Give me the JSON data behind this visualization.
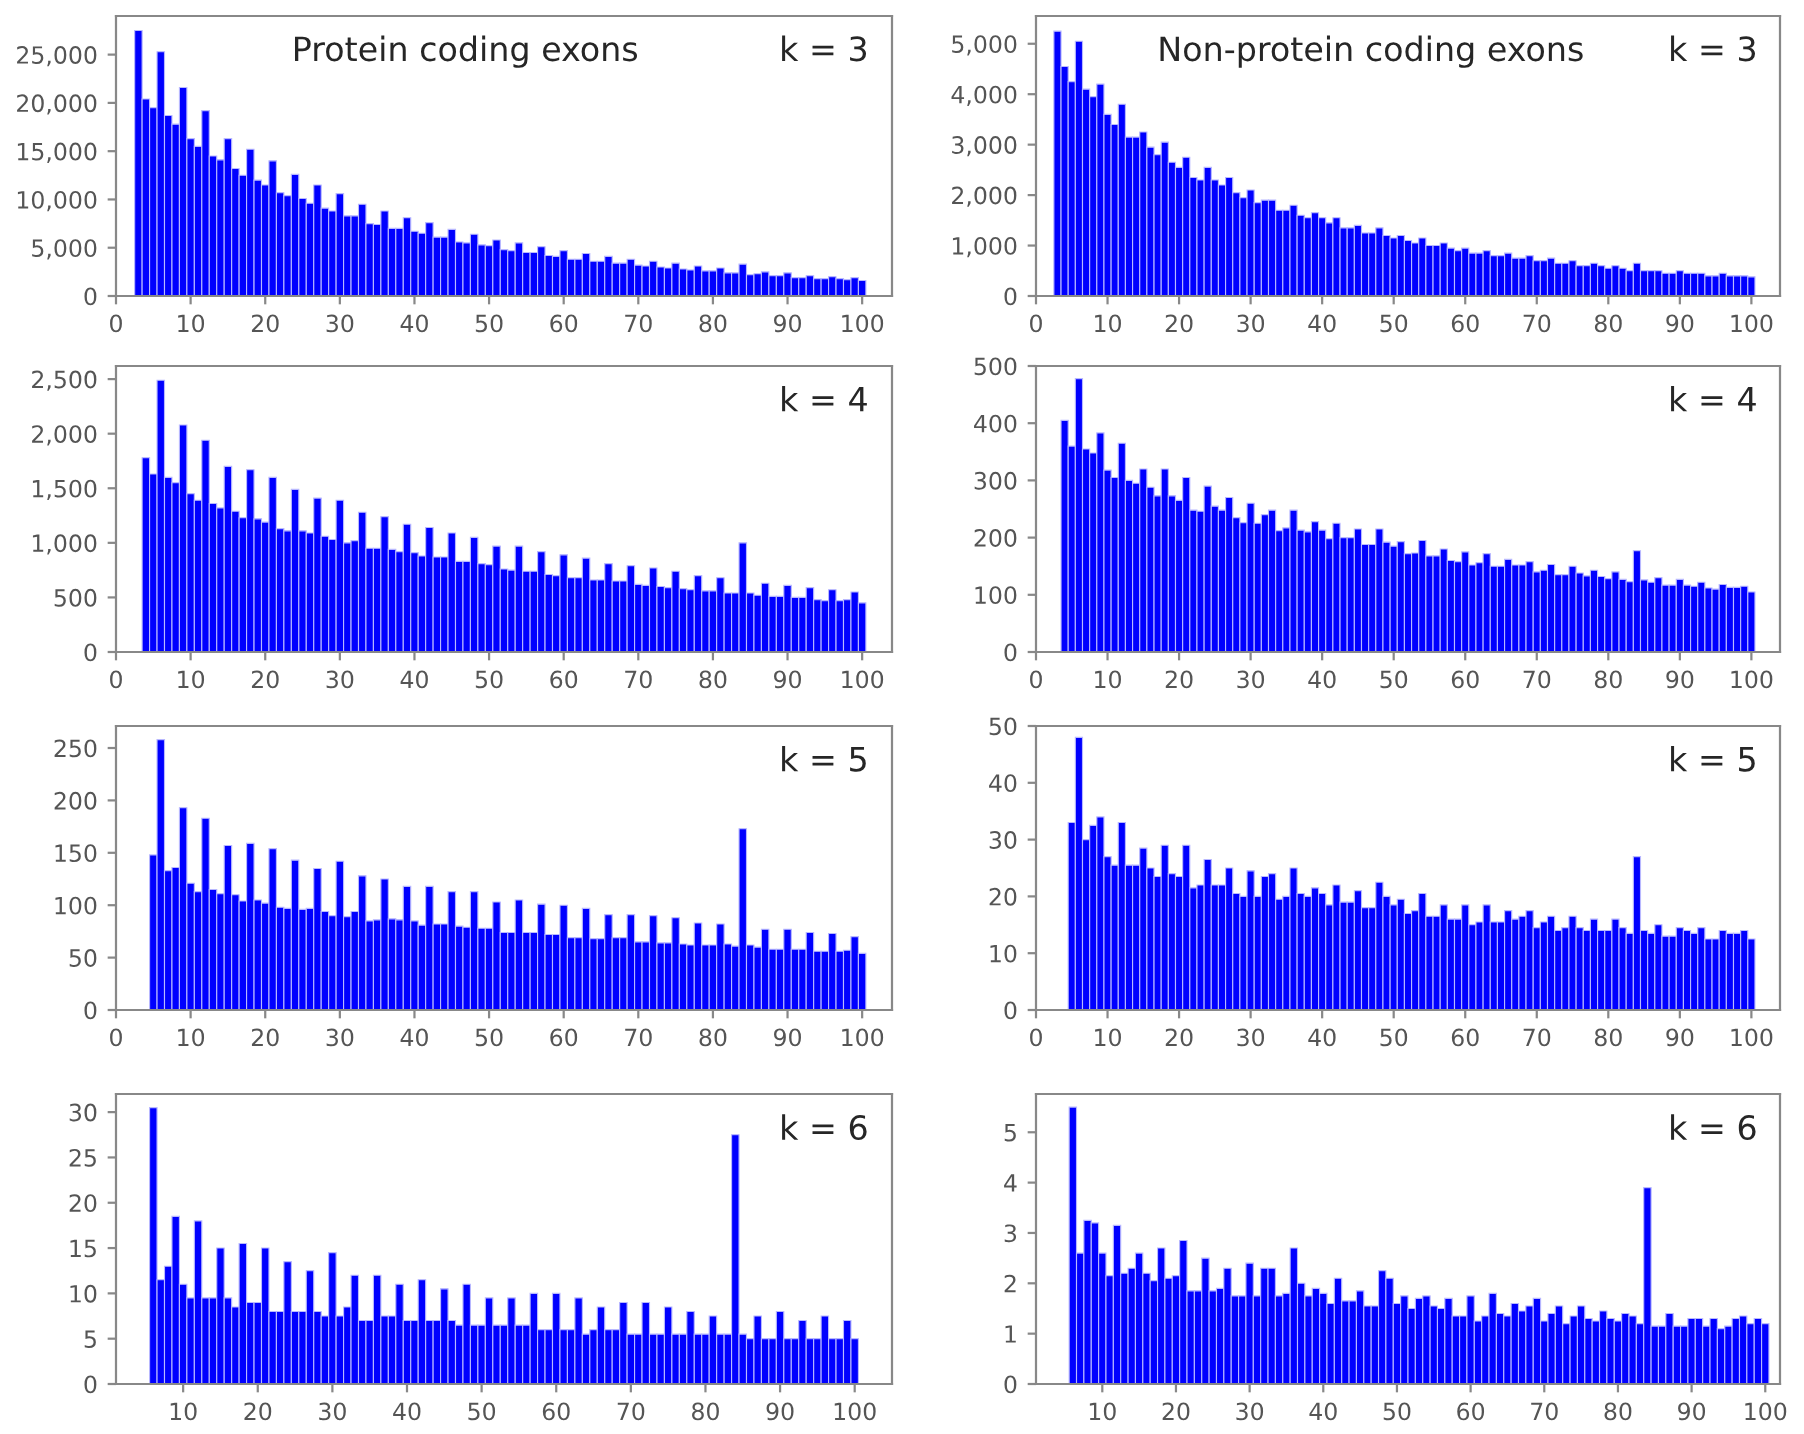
{
  "chart_data": [
    {
      "type": "histogram",
      "title": "Protein coding exons",
      "annotations": [
        "k = 3"
      ],
      "color": "#0000ff",
      "bins": [
        2.5,
        3.5,
        4.5,
        5.5,
        6.5,
        7.5,
        8.5,
        9.5,
        10.5,
        11.5,
        12.5,
        13.5,
        14.5,
        15.5,
        16.5,
        17.5,
        18.5,
        19.5,
        20.5,
        21.5,
        22.5,
        23.5,
        24.5,
        25.5,
        26.5,
        27.5,
        28.5,
        29.5,
        30.5,
        31.5,
        32.5,
        33.5,
        34.5,
        35.5,
        36.5,
        37.5,
        38.5,
        39.5,
        40.5,
        41.5,
        42.5,
        43.5,
        44.5,
        45.5,
        46.5,
        47.5,
        48.5,
        49.5,
        50.5,
        51.5,
        52.5,
        53.5,
        54.5,
        55.5,
        56.5,
        57.5,
        58.5,
        59.5,
        60.5,
        61.5,
        62.5,
        63.5,
        64.5,
        65.5,
        66.5,
        67.5,
        68.5,
        69.5,
        70.5,
        71.5,
        72.5,
        73.5,
        74.5,
        75.5,
        76.5,
        77.5,
        78.5,
        79.5,
        80.5,
        81.5,
        82.5,
        83.5,
        84.5,
        85.5,
        86.5,
        87.5,
        88.5,
        89.5,
        90.5,
        91.5,
        92.5,
        93.5,
        94.5,
        95.5,
        96.5,
        97.5,
        98.5,
        99.5,
        100.5
      ],
      "values": [
        27500,
        20400,
        19500,
        25300,
        18700,
        17800,
        21600,
        16300,
        15500,
        19200,
        14500,
        14100,
        16300,
        13200,
        12500,
        15200,
        12000,
        11500,
        14000,
        10700,
        10400,
        12600,
        10100,
        9600,
        11500,
        9100,
        8800,
        10600,
        8300,
        8300,
        9500,
        7500,
        7400,
        8800,
        7000,
        7000,
        8100,
        6700,
        6500,
        7600,
        6100,
        6100,
        6900,
        5600,
        5500,
        6400,
        5300,
        5200,
        5800,
        4800,
        4700,
        5500,
        4500,
        4500,
        5100,
        4200,
        4100,
        4700,
        3800,
        3800,
        4400,
        3600,
        3600,
        4100,
        3400,
        3400,
        3800,
        3200,
        3100,
        3600,
        3000,
        2900,
        3400,
        2800,
        2700,
        3100,
        2600,
        2600,
        2900,
        2400,
        2400,
        3300,
        2200,
        2300,
        2500,
        2100,
        2100,
        2400,
        1900,
        1900,
        2100,
        1800,
        1800,
        2000,
        1800,
        1700,
        1900,
        1600
      ],
      "xlim": [
        0,
        104
      ],
      "xticks": [
        0,
        10,
        20,
        30,
        40,
        50,
        60,
        70,
        80,
        90,
        100
      ],
      "ylim": [
        0,
        29000
      ],
      "yticks": [
        0,
        {
          "value": 5000,
          "label": "5,000"
        },
        {
          "value": 10000,
          "label": "10,000"
        },
        {
          "value": 15000,
          "label": "15,000"
        },
        {
          "value": 20000,
          "label": "20,000"
        },
        {
          "value": 25000,
          "label": "25,000"
        }
      ]
    },
    {
      "type": "histogram",
      "title": "Non-protein coding exons",
      "annotations": [
        "k = 3"
      ],
      "color": "#0000ff",
      "bins": [
        2.5,
        3.5,
        4.5,
        5.5,
        6.5,
        7.5,
        8.5,
        9.5,
        10.5,
        11.5,
        12.5,
        13.5,
        14.5,
        15.5,
        16.5,
        17.5,
        18.5,
        19.5,
        20.5,
        21.5,
        22.5,
        23.5,
        24.5,
        25.5,
        26.5,
        27.5,
        28.5,
        29.5,
        30.5,
        31.5,
        32.5,
        33.5,
        34.5,
        35.5,
        36.5,
        37.5,
        38.5,
        39.5,
        40.5,
        41.5,
        42.5,
        43.5,
        44.5,
        45.5,
        46.5,
        47.5,
        48.5,
        49.5,
        50.5,
        51.5,
        52.5,
        53.5,
        54.5,
        55.5,
        56.5,
        57.5,
        58.5,
        59.5,
        60.5,
        61.5,
        62.5,
        63.5,
        64.5,
        65.5,
        66.5,
        67.5,
        68.5,
        69.5,
        70.5,
        71.5,
        72.5,
        73.5,
        74.5,
        75.5,
        76.5,
        77.5,
        78.5,
        79.5,
        80.5,
        81.5,
        82.5,
        83.5,
        84.5,
        85.5,
        86.5,
        87.5,
        88.5,
        89.5,
        90.5,
        91.5,
        92.5,
        93.5,
        94.5,
        95.5,
        96.5,
        97.5,
        98.5,
        99.5,
        100.5
      ],
      "values": [
        5250,
        4550,
        4250,
        5050,
        4100,
        3950,
        4200,
        3600,
        3400,
        3800,
        3150,
        3150,
        3250,
        2950,
        2800,
        3050,
        2650,
        2550,
        2750,
        2350,
        2300,
        2550,
        2300,
        2200,
        2350,
        2050,
        1950,
        2100,
        1850,
        1900,
        1900,
        1700,
        1700,
        1800,
        1600,
        1550,
        1650,
        1550,
        1450,
        1550,
        1350,
        1350,
        1400,
        1250,
        1250,
        1350,
        1200,
        1150,
        1200,
        1100,
        1050,
        1150,
        1000,
        1000,
        1050,
        950,
        900,
        950,
        850,
        850,
        900,
        800,
        800,
        850,
        750,
        750,
        800,
        700,
        700,
        750,
        650,
        650,
        700,
        600,
        600,
        650,
        600,
        550,
        600,
        550,
        500,
        650,
        500,
        500,
        500,
        450,
        450,
        500,
        450,
        450,
        450,
        400,
        400,
        450,
        400,
        400,
        400,
        380
      ],
      "xlim": [
        0,
        104
      ],
      "xticks": [
        0,
        10,
        20,
        30,
        40,
        50,
        60,
        70,
        80,
        90,
        100
      ],
      "ylim": [
        0,
        5550
      ],
      "yticks": [
        0,
        {
          "value": 1000,
          "label": "1,000"
        },
        {
          "value": 2000,
          "label": "2,000"
        },
        {
          "value": 3000,
          "label": "3,000"
        },
        {
          "value": 4000,
          "label": "4,000"
        },
        {
          "value": 5000,
          "label": "5,000"
        }
      ]
    },
    {
      "type": "histogram",
      "annotations": [
        "k = 4"
      ],
      "color": "#0000ff",
      "bins": [
        3.5,
        4.5,
        5.5,
        6.5,
        7.5,
        8.5,
        9.5,
        10.5,
        11.5,
        12.5,
        13.5,
        14.5,
        15.5,
        16.5,
        17.5,
        18.5,
        19.5,
        20.5,
        21.5,
        22.5,
        23.5,
        24.5,
        25.5,
        26.5,
        27.5,
        28.5,
        29.5,
        30.5,
        31.5,
        32.5,
        33.5,
        34.5,
        35.5,
        36.5,
        37.5,
        38.5,
        39.5,
        40.5,
        41.5,
        42.5,
        43.5,
        44.5,
        45.5,
        46.5,
        47.5,
        48.5,
        49.5,
        50.5,
        51.5,
        52.5,
        53.5,
        54.5,
        55.5,
        56.5,
        57.5,
        58.5,
        59.5,
        60.5,
        61.5,
        62.5,
        63.5,
        64.5,
        65.5,
        66.5,
        67.5,
        68.5,
        69.5,
        70.5,
        71.5,
        72.5,
        73.5,
        74.5,
        75.5,
        76.5,
        77.5,
        78.5,
        79.5,
        80.5,
        81.5,
        82.5,
        83.5,
        84.5,
        85.5,
        86.5,
        87.5,
        88.5,
        89.5,
        90.5,
        91.5,
        92.5,
        93.5,
        94.5,
        95.5,
        96.5,
        97.5,
        98.5,
        99.5,
        100.5
      ],
      "values": [
        1780,
        1630,
        2490,
        1600,
        1550,
        2080,
        1450,
        1390,
        1940,
        1360,
        1320,
        1700,
        1290,
        1230,
        1670,
        1220,
        1190,
        1600,
        1130,
        1110,
        1490,
        1110,
        1090,
        1410,
        1060,
        1030,
        1390,
        1000,
        1020,
        1280,
        950,
        950,
        1240,
        940,
        920,
        1170,
        910,
        880,
        1140,
        870,
        870,
        1090,
        830,
        830,
        1050,
        810,
        800,
        970,
        760,
        750,
        970,
        740,
        740,
        920,
        710,
        700,
        890,
        680,
        680,
        860,
        660,
        660,
        810,
        650,
        650,
        790,
        620,
        610,
        770,
        600,
        590,
        740,
        580,
        570,
        700,
        560,
        560,
        680,
        540,
        540,
        1000,
        540,
        520,
        630,
        510,
        510,
        610,
        500,
        500,
        590,
        480,
        470,
        570,
        470,
        480,
        550,
        450
      ],
      "xlim": [
        0,
        104
      ],
      "xticks": [
        0,
        10,
        20,
        30,
        40,
        50,
        60,
        70,
        80,
        90,
        100
      ],
      "ylim": [
        0,
        2620
      ],
      "yticks": [
        0,
        500,
        {
          "value": 1000,
          "label": "1,000"
        },
        {
          "value": 1500,
          "label": "1,500"
        },
        {
          "value": 2000,
          "label": "2,000"
        },
        {
          "value": 2500,
          "label": "2,500"
        }
      ]
    },
    {
      "type": "histogram",
      "annotations": [
        "k = 4"
      ],
      "color": "#0000ff",
      "bins": [
        3.5,
        4.5,
        5.5,
        6.5,
        7.5,
        8.5,
        9.5,
        10.5,
        11.5,
        12.5,
        13.5,
        14.5,
        15.5,
        16.5,
        17.5,
        18.5,
        19.5,
        20.5,
        21.5,
        22.5,
        23.5,
        24.5,
        25.5,
        26.5,
        27.5,
        28.5,
        29.5,
        30.5,
        31.5,
        32.5,
        33.5,
        34.5,
        35.5,
        36.5,
        37.5,
        38.5,
        39.5,
        40.5,
        41.5,
        42.5,
        43.5,
        44.5,
        45.5,
        46.5,
        47.5,
        48.5,
        49.5,
        50.5,
        51.5,
        52.5,
        53.5,
        54.5,
        55.5,
        56.5,
        57.5,
        58.5,
        59.5,
        60.5,
        61.5,
        62.5,
        63.5,
        64.5,
        65.5,
        66.5,
        67.5,
        68.5,
        69.5,
        70.5,
        71.5,
        72.5,
        73.5,
        74.5,
        75.5,
        76.5,
        77.5,
        78.5,
        79.5,
        80.5,
        81.5,
        82.5,
        83.5,
        84.5,
        85.5,
        86.5,
        87.5,
        88.5,
        89.5,
        90.5,
        91.5,
        92.5,
        93.5,
        94.5,
        95.5,
        96.5,
        97.5,
        98.5,
        99.5,
        100.5
      ],
      "values": [
        405,
        360,
        478,
        355,
        348,
        383,
        318,
        305,
        365,
        300,
        295,
        320,
        288,
        273,
        320,
        273,
        265,
        305,
        248,
        246,
        290,
        255,
        248,
        270,
        235,
        226,
        260,
        225,
        240,
        248,
        212,
        217,
        248,
        213,
        210,
        228,
        213,
        198,
        225,
        200,
        200,
        215,
        188,
        188,
        215,
        192,
        185,
        193,
        172,
        173,
        195,
        168,
        168,
        180,
        160,
        158,
        175,
        152,
        156,
        172,
        150,
        150,
        162,
        152,
        152,
        158,
        140,
        143,
        153,
        135,
        135,
        150,
        138,
        133,
        143,
        132,
        128,
        140,
        127,
        123,
        177,
        126,
        122,
        130,
        117,
        117,
        127,
        117,
        115,
        122,
        112,
        110,
        118,
        113,
        113,
        115,
        105
      ],
      "xlim": [
        0,
        104
      ],
      "xticks": [
        0,
        10,
        20,
        30,
        40,
        50,
        60,
        70,
        80,
        90,
        100
      ],
      "ylim": [
        0,
        500
      ],
      "yticks": [
        0,
        100,
        200,
        300,
        400,
        500
      ]
    },
    {
      "type": "histogram",
      "annotations": [
        "k = 5"
      ],
      "color": "#0000ff",
      "bins": [
        4.5,
        5.5,
        6.5,
        7.5,
        8.5,
        9.5,
        10.5,
        11.5,
        12.5,
        13.5,
        14.5,
        15.5,
        16.5,
        17.5,
        18.5,
        19.5,
        20.5,
        21.5,
        22.5,
        23.5,
        24.5,
        25.5,
        26.5,
        27.5,
        28.5,
        29.5,
        30.5,
        31.5,
        32.5,
        33.5,
        34.5,
        35.5,
        36.5,
        37.5,
        38.5,
        39.5,
        40.5,
        41.5,
        42.5,
        43.5,
        44.5,
        45.5,
        46.5,
        47.5,
        48.5,
        49.5,
        50.5,
        51.5,
        52.5,
        53.5,
        54.5,
        55.5,
        56.5,
        57.5,
        58.5,
        59.5,
        60.5,
        61.5,
        62.5,
        63.5,
        64.5,
        65.5,
        66.5,
        67.5,
        68.5,
        69.5,
        70.5,
        71.5,
        72.5,
        73.5,
        74.5,
        75.5,
        76.5,
        77.5,
        78.5,
        79.5,
        80.5,
        81.5,
        82.5,
        83.5,
        84.5,
        85.5,
        86.5,
        87.5,
        88.5,
        89.5,
        90.5,
        91.5,
        92.5,
        93.5,
        94.5,
        95.5,
        96.5,
        97.5,
        98.5,
        99.5,
        100.5
      ],
      "values": [
        148,
        258,
        133,
        136,
        193,
        121,
        113,
        183,
        115,
        111,
        157,
        110,
        104,
        159,
        105,
        102,
        154,
        98,
        97,
        143,
        96,
        97,
        135,
        94,
        90,
        142,
        89,
        94,
        128,
        85,
        86,
        125,
        87,
        86,
        118,
        85,
        81,
        118,
        82,
        82,
        113,
        80,
        79,
        113,
        78,
        78,
        103,
        74,
        74,
        105,
        74,
        74,
        101,
        72,
        72,
        100,
        69,
        69,
        97,
        68,
        68,
        91,
        69,
        69,
        91,
        65,
        65,
        90,
        64,
        64,
        88,
        63,
        62,
        83,
        62,
        62,
        82,
        63,
        61,
        173,
        62,
        60,
        77,
        58,
        58,
        77,
        58,
        58,
        74,
        56,
        56,
        73,
        56,
        57,
        70,
        54
      ],
      "xlim": [
        0,
        104
      ],
      "xticks": [
        0,
        10,
        20,
        30,
        40,
        50,
        60,
        70,
        80,
        90,
        100
      ],
      "ylim": [
        0,
        271
      ],
      "yticks": [
        0,
        50,
        100,
        150,
        200,
        250
      ]
    },
    {
      "type": "histogram",
      "annotations": [
        "k = 5"
      ],
      "color": "#0000ff",
      "bins": [
        4.5,
        5.5,
        6.5,
        7.5,
        8.5,
        9.5,
        10.5,
        11.5,
        12.5,
        13.5,
        14.5,
        15.5,
        16.5,
        17.5,
        18.5,
        19.5,
        20.5,
        21.5,
        22.5,
        23.5,
        24.5,
        25.5,
        26.5,
        27.5,
        28.5,
        29.5,
        30.5,
        31.5,
        32.5,
        33.5,
        34.5,
        35.5,
        36.5,
        37.5,
        38.5,
        39.5,
        40.5,
        41.5,
        42.5,
        43.5,
        44.5,
        45.5,
        46.5,
        47.5,
        48.5,
        49.5,
        50.5,
        51.5,
        52.5,
        53.5,
        54.5,
        55.5,
        56.5,
        57.5,
        58.5,
        59.5,
        60.5,
        61.5,
        62.5,
        63.5,
        64.5,
        65.5,
        66.5,
        67.5,
        68.5,
        69.5,
        70.5,
        71.5,
        72.5,
        73.5,
        74.5,
        75.5,
        76.5,
        77.5,
        78.5,
        79.5,
        80.5,
        81.5,
        82.5,
        83.5,
        84.5,
        85.5,
        86.5,
        87.5,
        88.5,
        89.5,
        90.5,
        91.5,
        92.5,
        93.5,
        94.5,
        95.5,
        96.5,
        97.5,
        98.5,
        99.5,
        100.5
      ],
      "values": [
        33,
        48,
        30,
        32.5,
        34,
        27,
        25.5,
        33,
        25.5,
        25.5,
        28.5,
        25,
        23.5,
        29,
        24,
        23.5,
        29,
        21.5,
        22,
        26.5,
        22,
        22,
        25,
        20.5,
        20,
        24.5,
        20,
        23.5,
        24,
        19.5,
        20,
        25,
        20.5,
        20,
        21.5,
        20.5,
        18.5,
        22,
        19,
        19,
        21,
        18,
        18,
        22.5,
        20,
        18.5,
        19.5,
        17,
        17.5,
        20.5,
        16.5,
        16.5,
        18.5,
        16,
        16,
        18.5,
        15,
        15.5,
        18.5,
        15.5,
        15.5,
        17.5,
        16,
        16.5,
        17.5,
        14.5,
        15.5,
        16.5,
        14,
        14.5,
        16.5,
        14.5,
        14,
        16,
        14,
        14,
        16,
        14.5,
        13.5,
        27,
        14,
        13.5,
        15,
        13,
        13,
        14.5,
        14,
        13.5,
        14.5,
        12.5,
        12.5,
        14,
        13.5,
        13.5,
        14,
        12.5
      ],
      "xlim": [
        0,
        104
      ],
      "xticks": [
        0,
        10,
        20,
        30,
        40,
        50,
        60,
        70,
        80,
        90,
        100
      ],
      "ylim": [
        0,
        50
      ],
      "yticks": [
        0,
        10,
        20,
        30,
        40,
        50
      ]
    },
    {
      "type": "histogram",
      "annotations": [
        "k = 6"
      ],
      "color": "#0000ff",
      "bins": [
        5.5,
        6.5,
        7.5,
        8.5,
        9.5,
        10.5,
        11.5,
        12.5,
        13.5,
        14.5,
        15.5,
        16.5,
        17.5,
        18.5,
        19.5,
        20.5,
        21.5,
        22.5,
        23.5,
        24.5,
        25.5,
        26.5,
        27.5,
        28.5,
        29.5,
        30.5,
        31.5,
        32.5,
        33.5,
        34.5,
        35.5,
        36.5,
        37.5,
        38.5,
        39.5,
        40.5,
        41.5,
        42.5,
        43.5,
        44.5,
        45.5,
        46.5,
        47.5,
        48.5,
        49.5,
        50.5,
        51.5,
        52.5,
        53.5,
        54.5,
        55.5,
        56.5,
        57.5,
        58.5,
        59.5,
        60.5,
        61.5,
        62.5,
        63.5,
        64.5,
        65.5,
        66.5,
        67.5,
        68.5,
        69.5,
        70.5,
        71.5,
        72.5,
        73.5,
        74.5,
        75.5,
        76.5,
        77.5,
        78.5,
        79.5,
        80.5,
        81.5,
        82.5,
        83.5,
        84.5,
        85.5,
        86.5,
        87.5,
        88.5,
        89.5,
        90.5,
        91.5,
        92.5,
        93.5,
        94.5,
        95.5,
        96.5,
        97.5,
        98.5,
        99.5,
        100.5
      ],
      "values": [
        30.5,
        11.5,
        13,
        18.5,
        11,
        9.5,
        18,
        9.5,
        9.5,
        15,
        9.5,
        8.5,
        15.5,
        9,
        9,
        15,
        8,
        8,
        13.5,
        8,
        8,
        12.5,
        8,
        7.5,
        14.5,
        7.5,
        8.5,
        12,
        7,
        7,
        12,
        7.5,
        7.5,
        11,
        7,
        7,
        11.5,
        7,
        7,
        10.5,
        7,
        6.5,
        11,
        6.5,
        6.5,
        9.5,
        6.5,
        6.5,
        9.5,
        6.5,
        6.5,
        10,
        6,
        6,
        10,
        6,
        6,
        9.5,
        5.5,
        6,
        8.5,
        6,
        6,
        9,
        5.5,
        5.5,
        9,
        5.5,
        5.5,
        8.5,
        5.5,
        5.5,
        8,
        5.5,
        5.5,
        7.5,
        5.5,
        5.5,
        27.5,
        5.5,
        5,
        7.5,
        5,
        5,
        8,
        5,
        5,
        7,
        5,
        5,
        7.5,
        5,
        5,
        7,
        5
      ],
      "xlim": [
        1,
        105
      ],
      "xticks": [
        10,
        20,
        30,
        40,
        50,
        60,
        70,
        80,
        90,
        100
      ],
      "ylim": [
        0,
        32
      ],
      "yticks": [
        0,
        5,
        10,
        15,
        20,
        25,
        30
      ]
    },
    {
      "type": "histogram",
      "annotations": [
        "k = 6"
      ],
      "color": "#0000ff",
      "bins": [
        5.5,
        6.5,
        7.5,
        8.5,
        9.5,
        10.5,
        11.5,
        12.5,
        13.5,
        14.5,
        15.5,
        16.5,
        17.5,
        18.5,
        19.5,
        20.5,
        21.5,
        22.5,
        23.5,
        24.5,
        25.5,
        26.5,
        27.5,
        28.5,
        29.5,
        30.5,
        31.5,
        32.5,
        33.5,
        34.5,
        35.5,
        36.5,
        37.5,
        38.5,
        39.5,
        40.5,
        41.5,
        42.5,
        43.5,
        44.5,
        45.5,
        46.5,
        47.5,
        48.5,
        49.5,
        50.5,
        51.5,
        52.5,
        53.5,
        54.5,
        55.5,
        56.5,
        57.5,
        58.5,
        59.5,
        60.5,
        61.5,
        62.5,
        63.5,
        64.5,
        65.5,
        66.5,
        67.5,
        68.5,
        69.5,
        70.5,
        71.5,
        72.5,
        73.5,
        74.5,
        75.5,
        76.5,
        77.5,
        78.5,
        79.5,
        80.5,
        81.5,
        82.5,
        83.5,
        84.5,
        85.5,
        86.5,
        87.5,
        88.5,
        89.5,
        90.5,
        91.5,
        92.5,
        93.5,
        94.5,
        95.5,
        96.5,
        97.5,
        98.5,
        99.5,
        100.5
      ],
      "values": [
        5.5,
        2.6,
        3.25,
        3.2,
        2.6,
        2.15,
        3.15,
        2.2,
        2.3,
        2.6,
        2.2,
        2.05,
        2.7,
        2.1,
        2.15,
        2.85,
        1.85,
        1.85,
        2.5,
        1.85,
        1.9,
        2.3,
        1.75,
        1.75,
        2.4,
        1.75,
        2.3,
        2.3,
        1.75,
        1.8,
        2.7,
        2,
        1.75,
        1.9,
        1.8,
        1.6,
        2.1,
        1.65,
        1.65,
        1.85,
        1.55,
        1.55,
        2.25,
        2.1,
        1.6,
        1.75,
        1.5,
        1.7,
        1.75,
        1.55,
        1.5,
        1.7,
        1.35,
        1.35,
        1.75,
        1.25,
        1.35,
        1.8,
        1.4,
        1.35,
        1.6,
        1.45,
        1.55,
        1.7,
        1.25,
        1.4,
        1.55,
        1.2,
        1.35,
        1.55,
        1.3,
        1.25,
        1.45,
        1.3,
        1.25,
        1.4,
        1.35,
        1.2,
        3.9,
        1.15,
        1.15,
        1.4,
        1.15,
        1.15,
        1.3,
        1.3,
        1.15,
        1.3,
        1.1,
        1.15,
        1.3,
        1.35,
        1.2,
        1.3,
        1.2
      ],
      "xlim": [
        1,
        102
      ],
      "xticks": [
        10,
        20,
        30,
        40,
        50,
        60,
        70,
        80,
        90,
        100
      ],
      "ylim": [
        0,
        5.76
      ],
      "yticks": [
        0,
        1,
        2,
        3,
        4,
        5
      ]
    }
  ]
}
